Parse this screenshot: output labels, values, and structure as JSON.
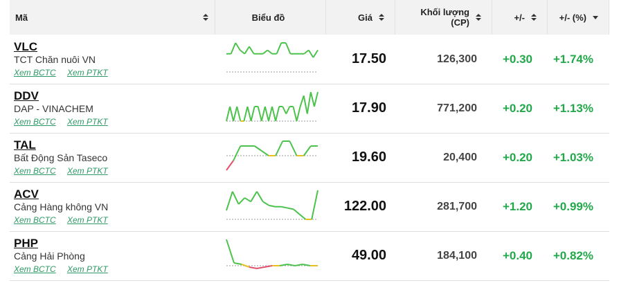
{
  "table": {
    "columns": [
      "Mã",
      "Biểu đồ",
      "Giá",
      "Khối lượng (CP)",
      "+/-",
      "+/- (%)"
    ],
    "rows": [
      {
        "symbol": "VLC",
        "name": "TCT Chăn nuôi VN",
        "links": [
          "Xem BCTC",
          "Xem PTKT"
        ],
        "price": "17.50",
        "volume": "126,300",
        "change": "+0.30",
        "change_pct": "+1.74%",
        "chart": {
          "ref": 17.2,
          "values": [
            17.45,
            17.45,
            17.6,
            17.5,
            17.45,
            17.55,
            17.45,
            17.45,
            17.45,
            17.5,
            17.45,
            17.45,
            17.6,
            17.6,
            17.45,
            17.45,
            17.45,
            17.45,
            17.5,
            17.4,
            17.5
          ]
        }
      },
      {
        "symbol": "DDV",
        "name": "DAP - VINACHEM",
        "links": [
          "Xem BCTC",
          "Xem PTKT"
        ],
        "price": "17.90",
        "volume": "771,200",
        "change": "+0.20",
        "change_pct": "+1.13%",
        "chart": {
          "ref": 17.7,
          "values": [
            17.7,
            17.9,
            17.7,
            17.9,
            17.7,
            17.7,
            17.9,
            17.7,
            17.9,
            17.9,
            17.7,
            17.9,
            17.7,
            17.9,
            17.7,
            17.9,
            17.9,
            17.8,
            17.9,
            17.9,
            17.7,
            17.9,
            18.05,
            17.8,
            18.1,
            17.9,
            18.1
          ]
        }
      },
      {
        "symbol": "TAL",
        "name": "Bất Động Sản Taseco",
        "links": [
          "Xem BCTC",
          "Xem PTKT"
        ],
        "price": "19.60",
        "volume": "20,400",
        "change": "+0.20",
        "change_pct": "+1.03%",
        "chart": {
          "ref": 19.4,
          "values": [
            19.1,
            19.3,
            19.6,
            19.6,
            19.6,
            19.5,
            19.4,
            19.4,
            19.7,
            19.7,
            19.4,
            19.4,
            19.6,
            19.6
          ]
        }
      },
      {
        "symbol": "ACV",
        "name": "Cảng Hàng không VN",
        "links": [
          "Xem BCTC",
          "Xem PTKT"
        ],
        "price": "122.00",
        "volume": "281,700",
        "change": "+1.20",
        "change_pct": "+0.99%",
        "chart": {
          "ref": 120.8,
          "values": [
            121.5,
            123,
            122,
            122.5,
            122.2,
            123,
            122.2,
            121.9,
            121.8,
            121.8,
            121.7,
            121.6,
            121.2,
            120.8,
            120.8,
            123.1
          ]
        }
      },
      {
        "symbol": "PHP",
        "name": "Cảng Hải Phòng",
        "links": [
          "Xem BCTC",
          "Xem PTKT"
        ],
        "price": "49.00",
        "volume": "184,100",
        "change": "+0.40",
        "change_pct": "+0.82%",
        "chart": {
          "ref": 48.6,
          "values": [
            50.5,
            48.8,
            48.7,
            48.5,
            48.4,
            48.5,
            48.6,
            48.6,
            48.7,
            48.6,
            48.7,
            48.6,
            48.6
          ]
        }
      }
    ]
  }
}
